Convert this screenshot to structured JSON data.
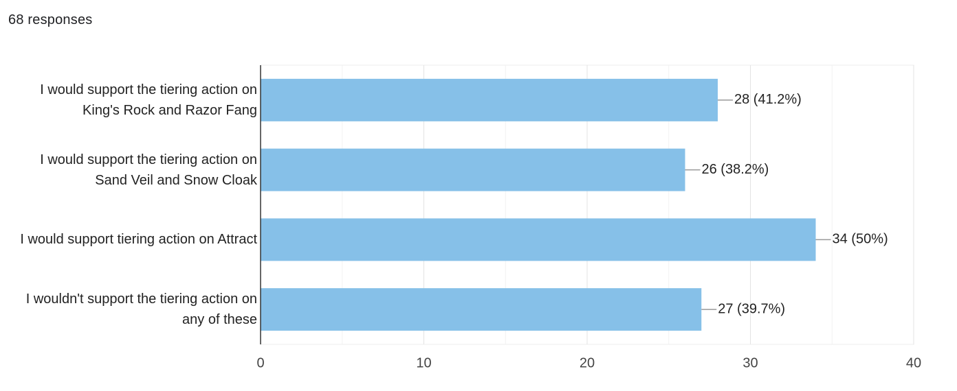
{
  "chart_data": {
    "type": "barh",
    "subtitle": "68 responses",
    "categories": [
      "I would support the tiering action on King's Rock and Razor Fang",
      "I would support the tiering action on Sand Veil and Snow Cloak",
      "I would support tiering action on Attract",
      "I wouldn't support the tiering action on any of these"
    ],
    "values": [
      28,
      26,
      34,
      27
    ],
    "value_labels": [
      "28 (41.2%)",
      "26 (38.2%)",
      "34 (50%)",
      "27 (39.7%)"
    ],
    "color": "#86c0e8",
    "xlim": [
      0,
      40
    ],
    "xticks": [
      0,
      10,
      20,
      30,
      40
    ],
    "xminor_ticks": [
      5,
      15,
      25,
      35
    ],
    "grid": true
  }
}
